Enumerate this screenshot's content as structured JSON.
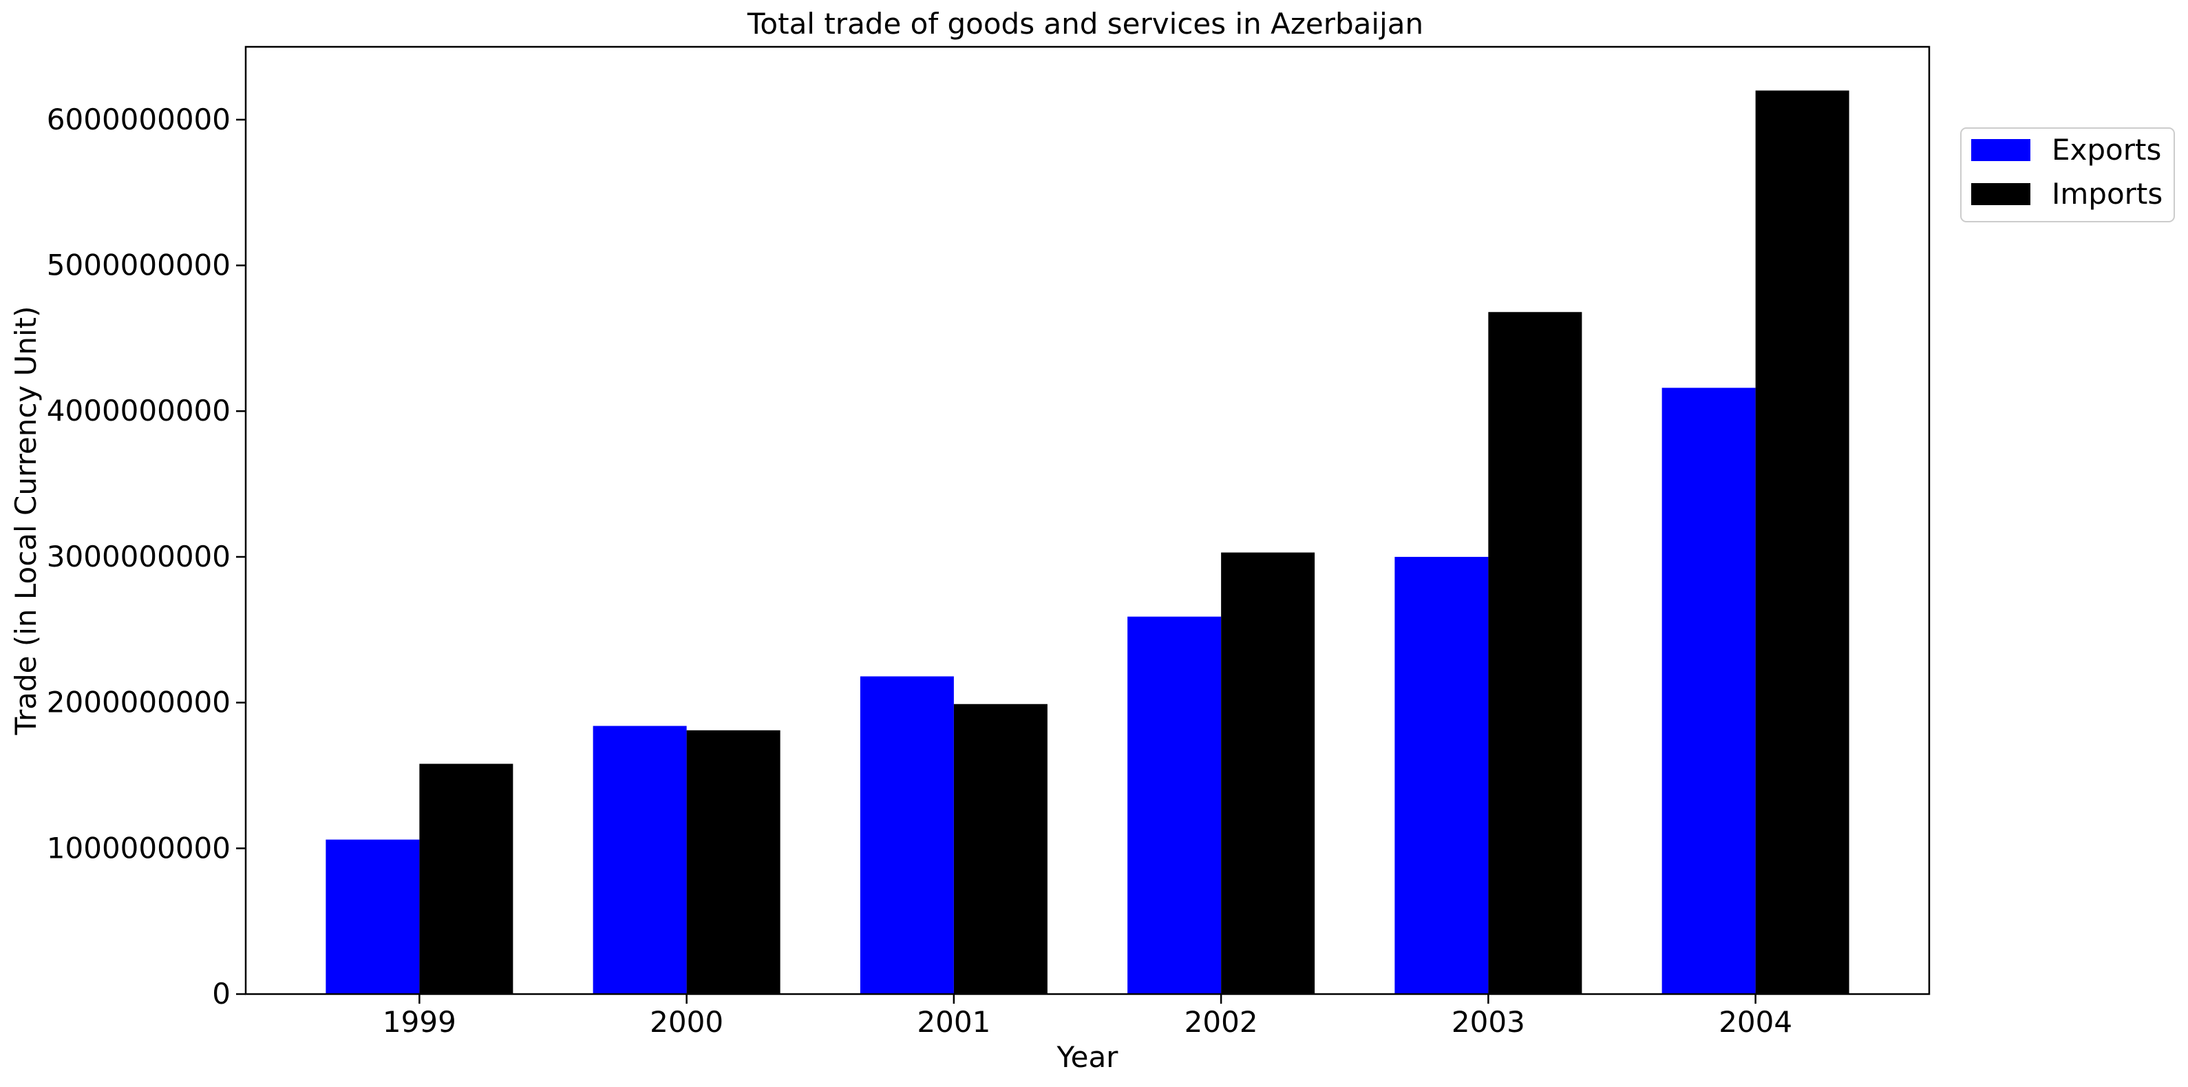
{
  "chart_data": {
    "type": "bar",
    "title": "Total trade of goods and services in Azerbaijan",
    "xlabel": "Year",
    "ylabel": "Trade (in Local Currency Unit)",
    "categories": [
      "1999",
      "2000",
      "2001",
      "2002",
      "2003",
      "2004"
    ],
    "series": [
      {
        "name": "Exports",
        "color": "#0000ff",
        "values": [
          1060000000,
          1840000000,
          2180000000,
          2590000000,
          3000000000,
          4160000000
        ]
      },
      {
        "name": "Imports",
        "color": "#000000",
        "values": [
          1580000000,
          1810000000,
          1990000000,
          3030000000,
          4680000000,
          6200000000
        ]
      }
    ],
    "ylim": [
      0,
      6500000000
    ],
    "yticks": [
      0,
      1000000000,
      2000000000,
      3000000000,
      4000000000,
      5000000000,
      6000000000
    ],
    "ytick_labels": [
      "0",
      "1000000000",
      "2000000000",
      "3000000000",
      "4000000000",
      "5000000000",
      "6000000000"
    ],
    "grid": false,
    "legend_position": "top-right outside"
  }
}
